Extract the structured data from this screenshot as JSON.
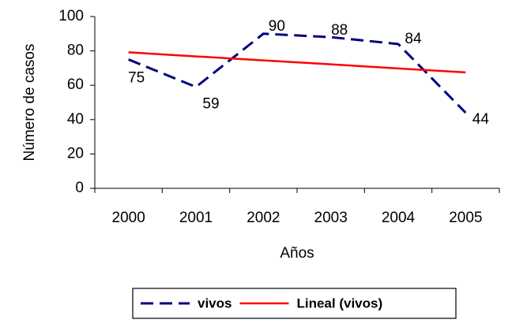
{
  "chart_data": {
    "type": "line",
    "x_label": "Años",
    "y_label": "Número de casos",
    "categories": [
      "2000",
      "2001",
      "2002",
      "2003",
      "2004",
      "2005"
    ],
    "series": [
      {
        "name": "vivos",
        "color": "#000080",
        "dashed": true,
        "values": [
          75,
          59,
          90,
          88,
          84,
          44
        ],
        "show_labels": true
      },
      {
        "name": "Lineal (vivos)",
        "color": "#ff0000",
        "dashed": false,
        "values": [
          79.2,
          76.8,
          74.5,
          72.2,
          69.8,
          67.5
        ],
        "show_labels": false
      }
    ],
    "ylim": [
      0,
      100
    ],
    "yticks": [
      0,
      20,
      40,
      60,
      80,
      100
    ],
    "grid": false,
    "legend": "bottom"
  }
}
